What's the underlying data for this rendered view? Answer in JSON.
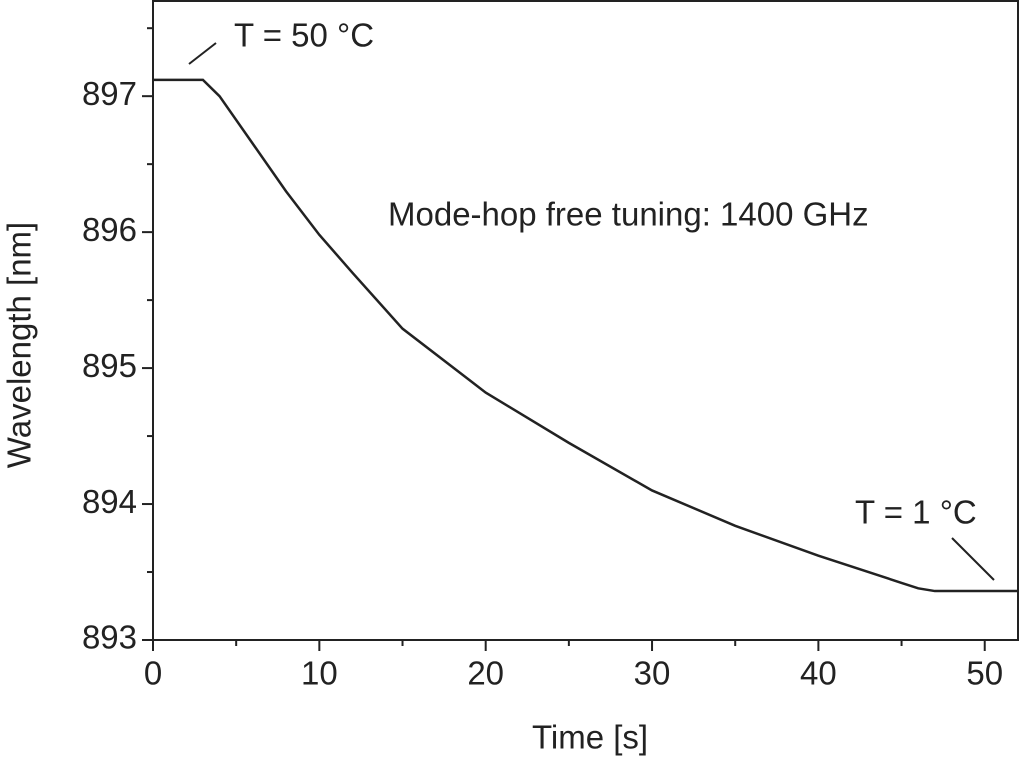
{
  "chart_data": {
    "type": "line",
    "x_label": "Time [s]",
    "y_label": "Wavelength [nm]",
    "annotations": [
      "T = 50 °C",
      "Mode-hop free tuning: 1400 GHz",
      "T = 1 °C"
    ],
    "x": [
      0,
      3,
      4,
      6,
      8,
      10,
      12,
      15,
      20,
      25,
      30,
      35,
      40,
      45,
      46,
      47,
      52
    ],
    "series": [
      {
        "color": "#222222",
        "values": [
          897.12,
          897.12,
          897.0,
          896.65,
          896.3,
          895.98,
          895.7,
          895.29,
          894.82,
          894.45,
          894.1,
          893.84,
          893.62,
          893.42,
          893.38,
          893.36,
          893.36
        ]
      }
    ],
    "xlim": [
      0,
      52
    ],
    "ylim": [
      893,
      897.7
    ],
    "xticks": [
      0,
      10,
      20,
      30,
      40,
      50
    ],
    "yticks": [
      893,
      894,
      895,
      896,
      897
    ],
    "xminorticks": [
      5,
      15,
      25,
      35,
      45
    ],
    "yminorticks": [
      893.5,
      894.5,
      895.5,
      896.5,
      897.5
    ]
  }
}
